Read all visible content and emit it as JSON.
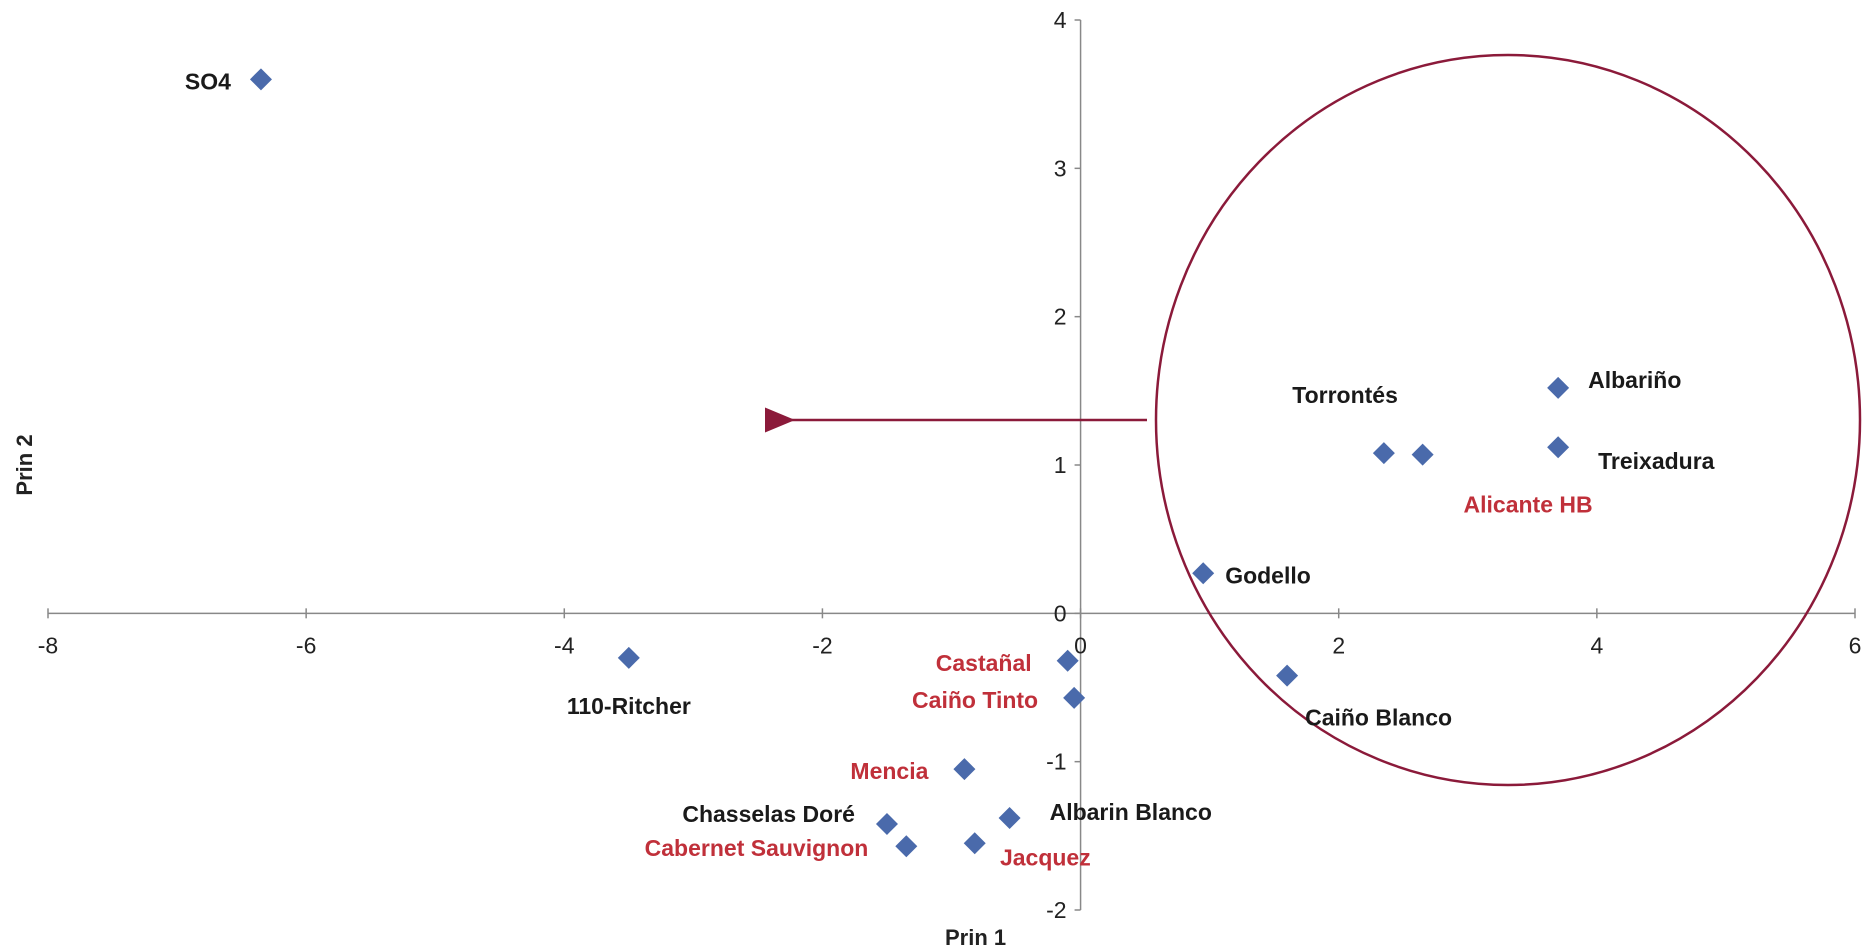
{
  "chart_data": {
    "type": "scatter",
    "title": "",
    "xlabel": "Prin 1",
    "ylabel": "Prin 2",
    "xlim": [
      -8,
      6
    ],
    "ylim": [
      -2,
      4
    ],
    "x_ticks": [
      "-8",
      "-6",
      "-4",
      "-2",
      "0",
      "2",
      "4",
      "6"
    ],
    "y_ticks": [
      "-2",
      "-1",
      "0",
      "1",
      "2",
      "3",
      "4"
    ],
    "grid": false,
    "marker_color": "#4a6aab",
    "label_colors": {
      "dark": "#1a1a1a",
      "red": "#c0303a"
    },
    "highlight": {
      "shape": "circle",
      "color": "#8b1a3a",
      "arrow": "pointing left from circle"
    },
    "points": [
      {
        "name": "SO4",
        "x": -6.35,
        "y": 3.6,
        "color": "dark"
      },
      {
        "name": "110-Ritcher",
        "x": -3.5,
        "y": -0.3,
        "color": "dark"
      },
      {
        "name": "Castañal",
        "x": -0.1,
        "y": -0.32,
        "color": "red"
      },
      {
        "name": "Caiño Tinto",
        "x": -0.05,
        "y": -0.57,
        "color": "red"
      },
      {
        "name": "Mencia",
        "x": -0.9,
        "y": -1.05,
        "color": "red"
      },
      {
        "name": "Chasselas Doré",
        "x": -1.5,
        "y": -1.42,
        "color": "dark"
      },
      {
        "name": "Cabernet Sauvignon",
        "x": -1.35,
        "y": -1.57,
        "color": "red"
      },
      {
        "name": "Jacquez",
        "x": -0.82,
        "y": -1.55,
        "color": "red"
      },
      {
        "name": "Albarin Blanco",
        "x": -0.55,
        "y": -1.38,
        "color": "dark"
      },
      {
        "name": "Godello",
        "x": 0.95,
        "y": 0.27,
        "color": "dark"
      },
      {
        "name": "Caiño Blanco",
        "x": 1.6,
        "y": -0.42,
        "color": "dark"
      },
      {
        "name": "Torrontés",
        "x": 2.35,
        "y": 1.08,
        "color": "dark"
      },
      {
        "name": "Alicante HB",
        "x": 2.65,
        "y": 1.07,
        "color": "red"
      },
      {
        "name": "Albariño",
        "x": 3.7,
        "y": 1.52,
        "color": "dark"
      },
      {
        "name": "Treixadura",
        "x": 3.7,
        "y": 1.12,
        "color": "dark"
      }
    ]
  }
}
